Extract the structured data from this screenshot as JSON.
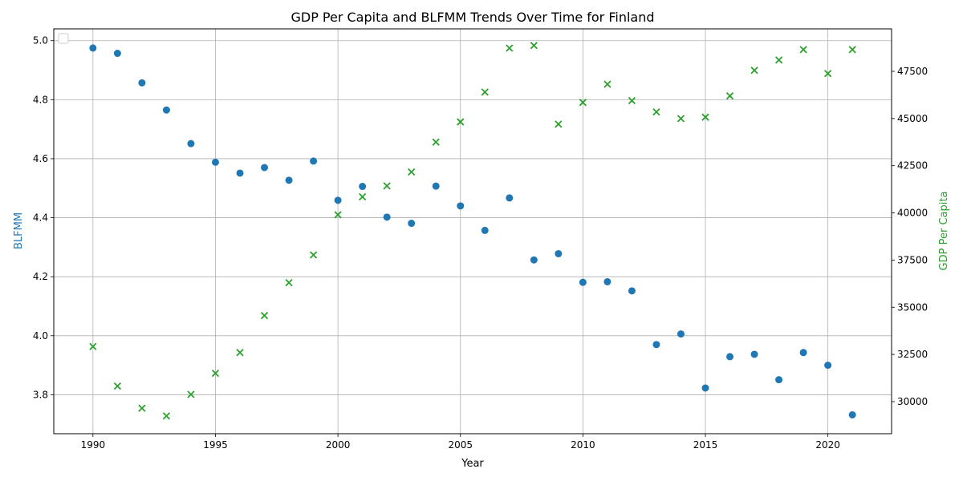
{
  "chart_data": {
    "type": "scatter",
    "title": "GDP Per Capita and BLFMM Trends Over Time for Finland",
    "xlabel": "Year",
    "ylabel_left": "BLFMM",
    "ylabel_right": "GDP Per Capita",
    "xlim": [
      1988.4,
      2022.6
    ],
    "ylim_left": [
      3.668,
      5.04
    ],
    "ylim_right": [
      28300,
      49750
    ],
    "x_ticks": [
      1990,
      1995,
      2000,
      2005,
      2010,
      2015,
      2020
    ],
    "y_left_ticks": [
      3.8,
      4.0,
      4.2,
      4.4,
      4.6,
      4.8,
      5.0
    ],
    "y_right_ticks": [
      30000,
      32500,
      35000,
      37500,
      40000,
      42500,
      45000,
      47500
    ],
    "grid": true,
    "legend": "upper-left, empty",
    "colors": {
      "left": "#1f77b4",
      "right": "#2ca02c"
    },
    "years": [
      1990,
      1991,
      1992,
      1993,
      1994,
      1995,
      1996,
      1997,
      1998,
      1999,
      2000,
      2001,
      2002,
      2003,
      2004,
      2005,
      2006,
      2007,
      2008,
      2009,
      2010,
      2011,
      2012,
      2013,
      2014,
      2015,
      2016,
      2017,
      2018,
      2019,
      2020,
      2021
    ],
    "series": [
      {
        "axis": "left",
        "marker": "circle",
        "values": [
          4.975,
          4.957,
          4.857,
          4.765,
          4.651,
          4.588,
          4.551,
          4.57,
          4.527,
          4.592,
          4.459,
          4.506,
          4.402,
          4.381,
          4.507,
          4.44,
          4.357,
          4.467,
          4.257,
          4.278,
          4.181,
          4.183,
          4.152,
          3.97,
          4.006,
          3.823,
          3.929,
          3.937,
          3.851,
          3.943,
          3.9,
          3.732
        ]
      },
      {
        "axis": "right",
        "marker": "x",
        "values": [
          32920,
          30820,
          29650,
          29240,
          30380,
          31500,
          32600,
          34560,
          36300,
          37770,
          39900,
          40850,
          41430,
          42170,
          43750,
          44820,
          46400,
          48730,
          48870,
          44700,
          45850,
          46820,
          45950,
          45350,
          45000,
          45070,
          46200,
          47550,
          48100,
          48650,
          47380,
          48650
        ]
      }
    ]
  }
}
